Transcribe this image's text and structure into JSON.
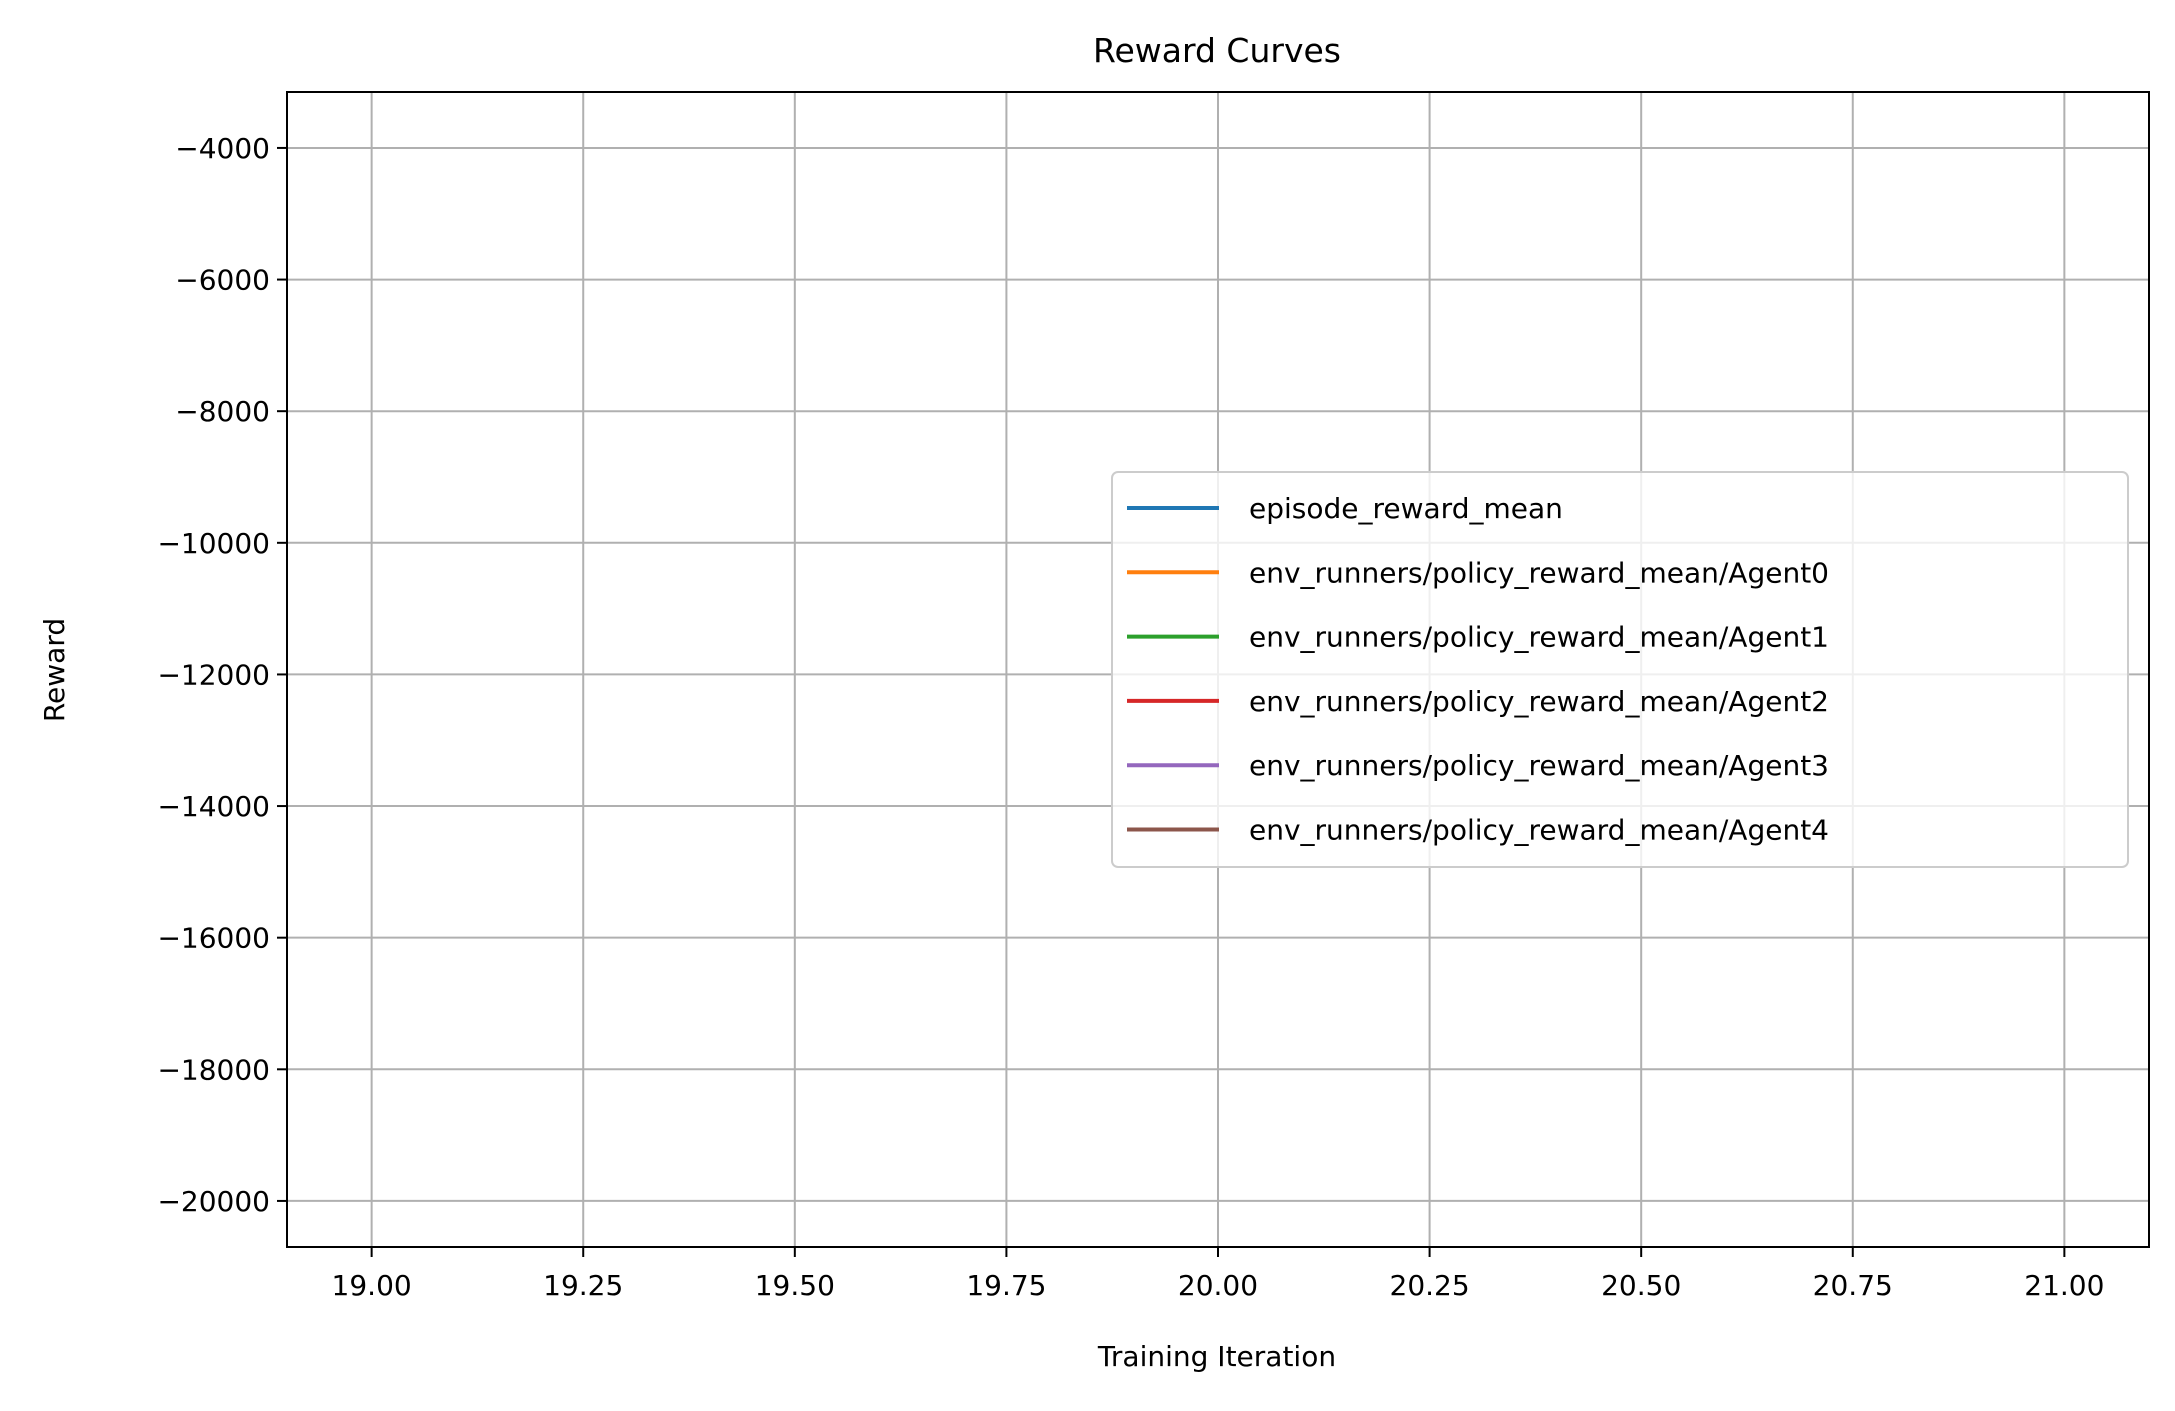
{
  "chart_data": {
    "type": "line",
    "title": "Reward Curves",
    "xlabel": "Training Iteration",
    "ylabel": "Reward",
    "xlim": [
      18.9,
      21.1
    ],
    "ylim": [
      -20700,
      -3150
    ],
    "x_ticks": [
      19.0,
      19.25,
      19.5,
      19.75,
      20.0,
      20.25,
      20.5,
      20.75,
      21.0
    ],
    "x_tick_labels": [
      "19.00",
      "19.25",
      "19.50",
      "19.75",
      "20.00",
      "20.25",
      "20.50",
      "20.75",
      "21.00"
    ],
    "y_ticks": [
      -4000,
      -6000,
      -8000,
      -10000,
      -12000,
      -14000,
      -16000,
      -18000,
      -20000
    ],
    "y_tick_labels": [
      "−4000",
      "−6000",
      "−8000",
      "−10000",
      "−12000",
      "−14000",
      "−16000",
      "−18000",
      "−20000"
    ],
    "grid": true,
    "legend_position": "center-right",
    "series": [
      {
        "name": "episode_reward_mean",
        "color": "#1f77b4",
        "x": [],
        "values": []
      },
      {
        "name": "env_runners/policy_reward_mean/Agent0",
        "color": "#ff7f0e",
        "x": [],
        "values": []
      },
      {
        "name": "env_runners/policy_reward_mean/Agent1",
        "color": "#2ca02c",
        "x": [],
        "values": []
      },
      {
        "name": "env_runners/policy_reward_mean/Agent2",
        "color": "#d62728",
        "x": [],
        "values": []
      },
      {
        "name": "env_runners/policy_reward_mean/Agent3",
        "color": "#9467bd",
        "x": [],
        "values": []
      },
      {
        "name": "env_runners/policy_reward_mean/Agent4",
        "color": "#8c564b",
        "x": [],
        "values": []
      }
    ]
  }
}
